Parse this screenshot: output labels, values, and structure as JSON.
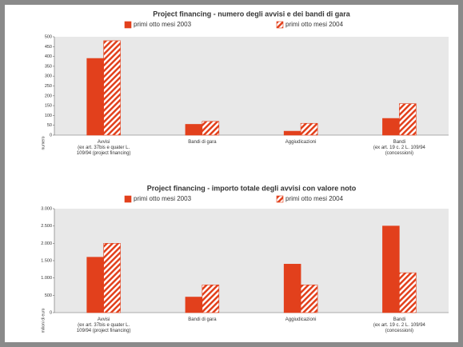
{
  "chart_data": [
    {
      "type": "bar",
      "title": "Project financing - numero degli avvisi e dei bandi di gara",
      "y_label": "numero",
      "categories": [
        "Avvisi\n(ex art. 37bis e quater L.\n109/94 (project financing)",
        "Bandi di gara",
        "Aggiudicazioni",
        "Bandi\n(ex art. 19 c. 2 L. 109/94\n(concessioni)"
      ],
      "series": [
        {
          "name": "primi otto mesi 2003",
          "color": "#e2401c",
          "hatch": false,
          "values": [
            390,
            55,
            20,
            85
          ]
        },
        {
          "name": "primi otto mesi 2004",
          "color": "#e2401c",
          "hatch": true,
          "values": [
            480,
            70,
            60,
            160
          ]
        }
      ],
      "ylim": [
        0,
        500
      ],
      "yticks": [
        0,
        50,
        100,
        150,
        200,
        250,
        300,
        350,
        400,
        450,
        500
      ]
    },
    {
      "type": "bar",
      "title": "Project financing - importo totale degli avvisi con valore noto",
      "y_label": "milioni di euro",
      "categories": [
        "Avvisi\n(ex art. 37bis e quater L.\n109/94 (project financing)",
        "Bandi di gara",
        "Aggiudicazioni",
        "Bandi\n(ex art. 19 c. 2 L. 109/94\n(concessioni)"
      ],
      "series": [
        {
          "name": "primi otto mesi 2003",
          "color": "#e2401c",
          "hatch": false,
          "values": [
            1600,
            450,
            1400,
            2500
          ]
        },
        {
          "name": "primi otto mesi 2004",
          "color": "#e2401c",
          "hatch": true,
          "values": [
            2000,
            800,
            800,
            1150
          ]
        }
      ],
      "ylim": [
        0,
        3000
      ],
      "yticks": [
        0,
        500,
        {
          "value": 1000,
          "label": "1.000"
        },
        {
          "value": 1500,
          "label": "1.500"
        },
        {
          "value": 2000,
          "label": "2.000"
        },
        {
          "value": 2500,
          "label": "2.500"
        },
        {
          "value": 3000,
          "label": "3.000"
        }
      ]
    }
  ]
}
